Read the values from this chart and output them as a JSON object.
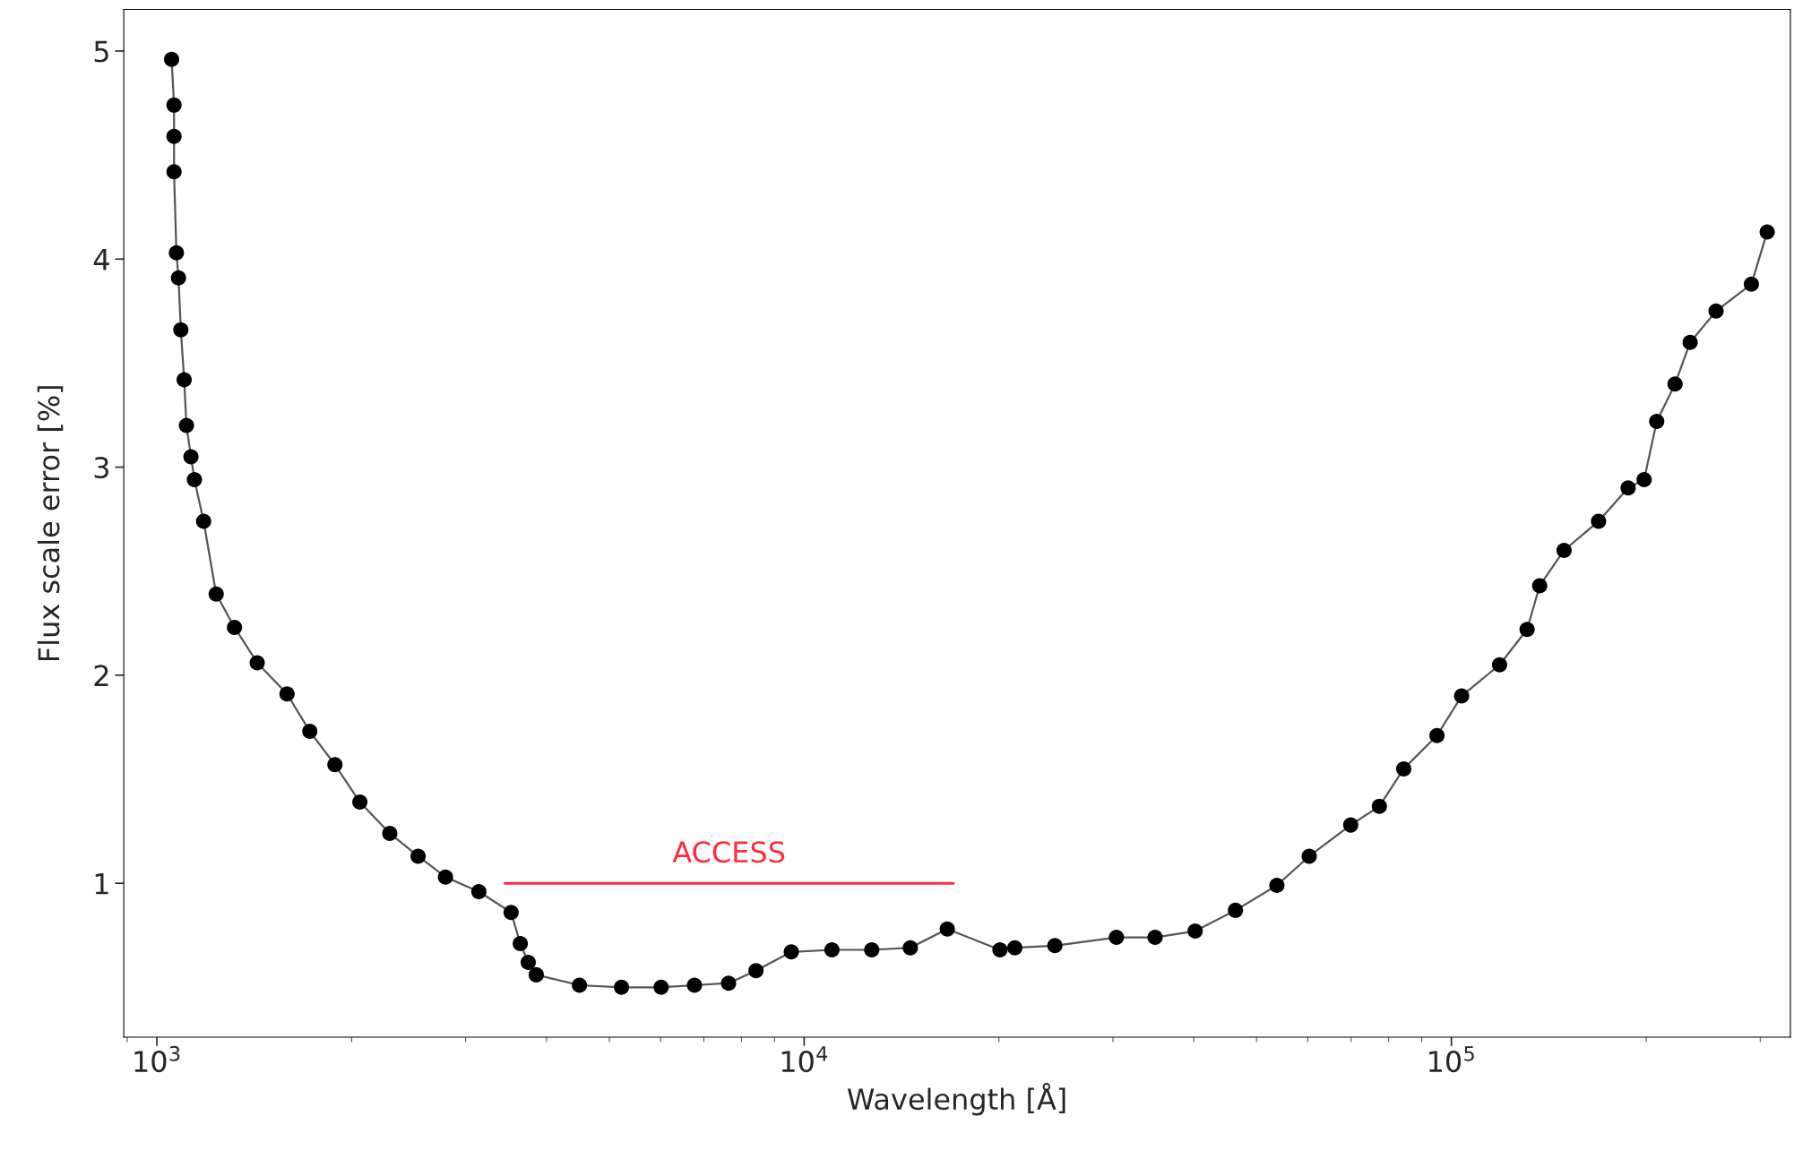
{
  "chart_data": {
    "type": "line",
    "xlabel": "Wavelength [Å]",
    "ylabel": "Flux scale error [%]",
    "log": "x",
    "xlim": [
      889,
      334000
    ],
    "ylim": [
      0.26,
      5.2
    ],
    "xticks": [
      {
        "value": 1000,
        "label": "10$^{3}$"
      },
      {
        "value": 10000,
        "label": "10$^{4}$"
      },
      {
        "value": 100000,
        "label": "10$^{5}$"
      }
    ],
    "yticks": [
      1,
      2,
      3,
      4,
      5
    ],
    "grid": false,
    "legend": false,
    "series": [
      {
        "color": "#555555",
        "x": [
          1054,
          1063,
          1063,
          1063,
          1072,
          1080,
          1089,
          1102,
          1111,
          1129,
          1143,
          1181,
          1235,
          1318,
          1429,
          1589,
          1723,
          1884,
          2059,
          2290,
          2533,
          2792,
          3144,
          3526,
          3643,
          3748,
          3856,
          4497,
          5222,
          6013,
          6770,
          7643,
          8426,
          9553,
          11040,
          12720,
          14590,
          16640,
          20070,
          21160,
          24400,
          30370,
          34850,
          40190,
          46390,
          53750,
          60300,
          69900,
          77400,
          84400,
          95000,
          103700,
          118700,
          130900,
          136900,
          149300,
          168800,
          187500,
          198500,
          207600,
          221600,
          233800,
          256400,
          290700,
          307500
        ],
        "values": [
          4.96,
          4.74,
          4.59,
          4.42,
          4.03,
          3.91,
          3.66,
          3.42,
          3.2,
          3.05,
          2.94,
          2.74,
          2.39,
          2.23,
          2.06,
          1.91,
          1.73,
          1.57,
          1.39,
          1.24,
          1.13,
          1.03,
          0.96,
          0.86,
          0.71,
          0.62,
          0.56,
          0.51,
          0.5,
          0.5,
          0.51,
          0.52,
          0.58,
          0.67,
          0.68,
          0.68,
          0.69,
          0.78,
          0.68,
          0.69,
          0.7,
          0.74,
          0.74,
          0.77,
          0.87,
          0.99,
          1.13,
          1.28,
          1.37,
          1.55,
          1.71,
          1.9,
          2.05,
          2.22,
          2.43,
          2.6,
          2.74,
          2.9,
          2.94,
          3.22,
          3.4,
          3.6,
          3.75,
          3.88,
          4.13
        ]
      },
      {
        "type": "scatter",
        "marker": "circle",
        "color": "#000000",
        "x": [
          1054,
          1063,
          1063,
          1063,
          1072,
          1080,
          1089,
          1102,
          1111,
          1129,
          1143,
          1181,
          1235,
          1318,
          1429,
          1589,
          1723,
          1884,
          2059,
          2290,
          2533,
          2792,
          3144,
          3526,
          3643,
          3748,
          3856,
          4497,
          5222,
          6013,
          6770,
          7643,
          8426,
          9553,
          11040,
          12720,
          14590,
          16640,
          20070,
          21160,
          24400,
          30370,
          34850,
          40190,
          46390,
          53750,
          60300,
          69900,
          77400,
          84400,
          95000,
          103700,
          118700,
          130900,
          136900,
          149300,
          168800,
          187500,
          198500,
          207600,
          221600,
          233800,
          256400,
          290700,
          307500
        ],
        "values": [
          4.96,
          4.74,
          4.59,
          4.42,
          4.03,
          3.91,
          3.66,
          3.42,
          3.2,
          3.05,
          2.94,
          2.74,
          2.39,
          2.23,
          2.06,
          1.91,
          1.73,
          1.57,
          1.39,
          1.24,
          1.13,
          1.03,
          0.96,
          0.86,
          0.71,
          0.62,
          0.56,
          0.51,
          0.5,
          0.5,
          0.51,
          0.52,
          0.58,
          0.67,
          0.68,
          0.68,
          0.69,
          0.78,
          0.68,
          0.69,
          0.7,
          0.74,
          0.74,
          0.77,
          0.87,
          0.99,
          1.13,
          1.28,
          1.37,
          1.55,
          1.71,
          1.9,
          2.05,
          2.22,
          2.43,
          2.6,
          2.74,
          2.9,
          2.94,
          3.22,
          3.4,
          3.6,
          3.75,
          3.88,
          4.13
        ]
      },
      {
        "name": "ACCESS",
        "color": "#ff2a3c",
        "x": [
          3450,
          17000
        ],
        "values": [
          1,
          1
        ]
      }
    ]
  }
}
